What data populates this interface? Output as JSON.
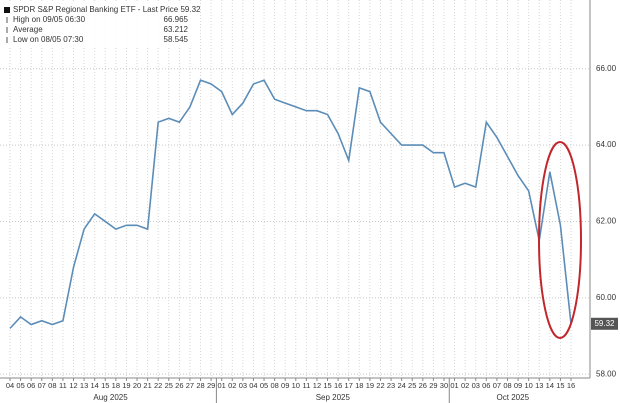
{
  "chart_data": {
    "type": "line",
    "categories": [
      "04",
      "05",
      "06",
      "07",
      "08",
      "11",
      "12",
      "13",
      "14",
      "15",
      "18",
      "19",
      "20",
      "21",
      "22",
      "25",
      "26",
      "27",
      "28",
      "29",
      "01",
      "02",
      "03",
      "04",
      "05",
      "08",
      "09",
      "10",
      "11",
      "12",
      "15",
      "16",
      "17",
      "18",
      "19",
      "22",
      "23",
      "24",
      "25",
      "26",
      "29",
      "30",
      "01",
      "02",
      "03",
      "06",
      "07",
      "08",
      "09",
      "10",
      "13",
      "14",
      "15",
      "16"
    ],
    "months": [
      "Aug 2025",
      "Sep 2025",
      "Oct 2025"
    ],
    "series": [
      {
        "name": "SPDR S&P Regional Banking ETF - Last Price 59.32",
        "color": "#5b8db8",
        "values": [
          59.2,
          59.5,
          59.3,
          59.4,
          59.3,
          59.4,
          60.8,
          61.8,
          62.2,
          62.0,
          61.8,
          61.9,
          61.9,
          61.8,
          64.6,
          64.7,
          64.6,
          65.0,
          65.7,
          65.6,
          65.4,
          64.8,
          65.1,
          65.6,
          65.7,
          65.2,
          65.1,
          65.0,
          64.9,
          64.9,
          64.8,
          64.3,
          63.6,
          65.5,
          65.4,
          64.6,
          64.3,
          64.0,
          64.0,
          64.0,
          63.8,
          63.8,
          62.9,
          63.0,
          62.9,
          64.6,
          64.2,
          63.7,
          63.2,
          62.8,
          61.5,
          63.3,
          61.9,
          59.32
        ]
      }
    ],
    "stats": [
      {
        "label": "High on 09/05 06:30",
        "value": 66.965
      },
      {
        "label": "Average",
        "value": 63.212
      },
      {
        "label": "Low on 08/05 07:30",
        "value": 58.545
      }
    ],
    "ylim": [
      57.9,
      67.8
    ],
    "yticks": [
      {
        "value": 58,
        "label": "58.00"
      },
      {
        "value": 60,
        "label": "60.00"
      },
      {
        "value": 62,
        "label": "62.00"
      },
      {
        "value": 64,
        "label": "64.00"
      },
      {
        "value": 66,
        "label": "66.00"
      }
    ],
    "grid": true
  }
}
